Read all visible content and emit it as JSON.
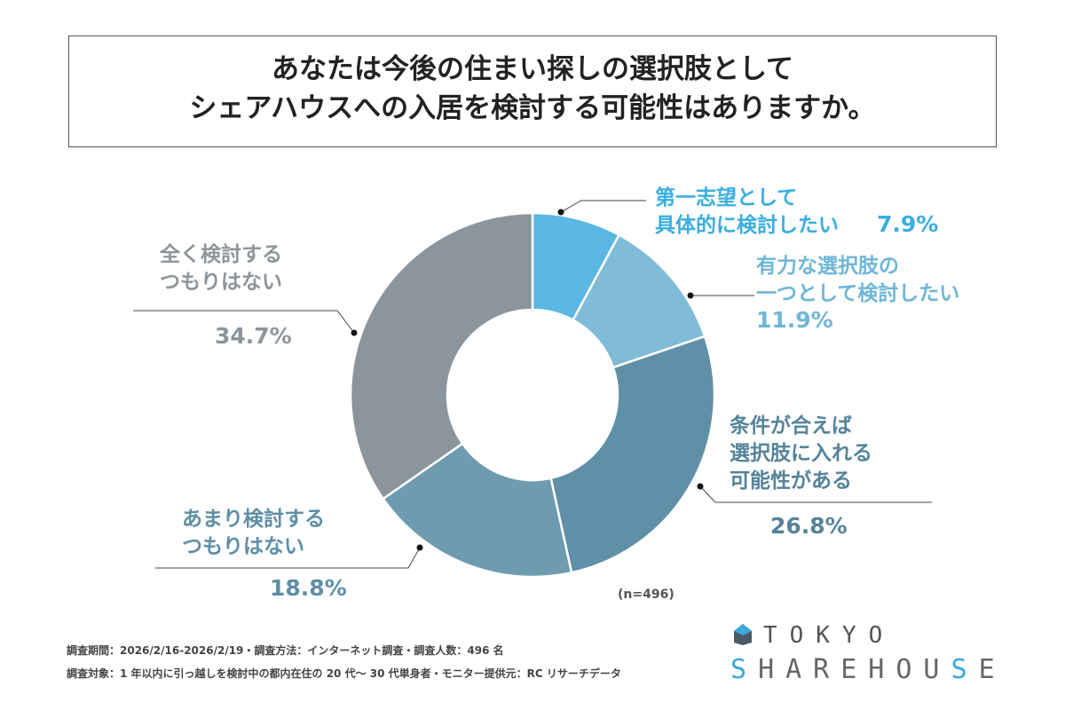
{
  "title": {
    "line1": "あなたは今後の住まい探しの選択肢として",
    "line2": "シェアハウスへの入居を検討する可能性はありますか。"
  },
  "chart_data": {
    "type": "pie",
    "donut": true,
    "sample_note": "(n=496)",
    "slices": [
      {
        "label_lines": [
          "第一志望として",
          "具体的に検討したい"
        ],
        "value": 7.9,
        "value_label": "7.9%",
        "color": "#5bb8e2",
        "label_color": "#3aaee0"
      },
      {
        "label_lines": [
          "有力な選択肢の",
          "一つとして検討したい"
        ],
        "value": 11.9,
        "value_label": "11.9%",
        "color": "#80bcd7",
        "label_color": "#6fb6d6"
      },
      {
        "label_lines": [
          "条件が合えば",
          "選択肢に入れる",
          "可能性がある"
        ],
        "value": 26.8,
        "value_label": "26.8%",
        "color": "#6090a7",
        "label_color": "#55849a"
      },
      {
        "label_lines": [
          "あまり検討する",
          "つもりはない"
        ],
        "value": 18.8,
        "value_label": "18.8%",
        "color": "#6f9bb0",
        "label_color": "#5f8ea6"
      },
      {
        "label_lines": [
          "全く検討する",
          "つもりはない"
        ],
        "value": 34.7,
        "value_label": "34.7%",
        "color": "#8a959d",
        "label_color": "#8d959b"
      }
    ]
  },
  "footer": {
    "line1": "調査期間：2026/2/16-2026/2/19・調査方法：インターネット調査・調査人数：496 名",
    "line2": "調査対象：1 年以内に引っ越しを検討中の都内在住の 20 代〜 30 代単身者・モニター提供元：RC リサーチデータ"
  },
  "logo": {
    "top": "TOKYO",
    "bottom_a": "SHAREHOU",
    "bottom_b": "S",
    "bottom_c": "E"
  }
}
